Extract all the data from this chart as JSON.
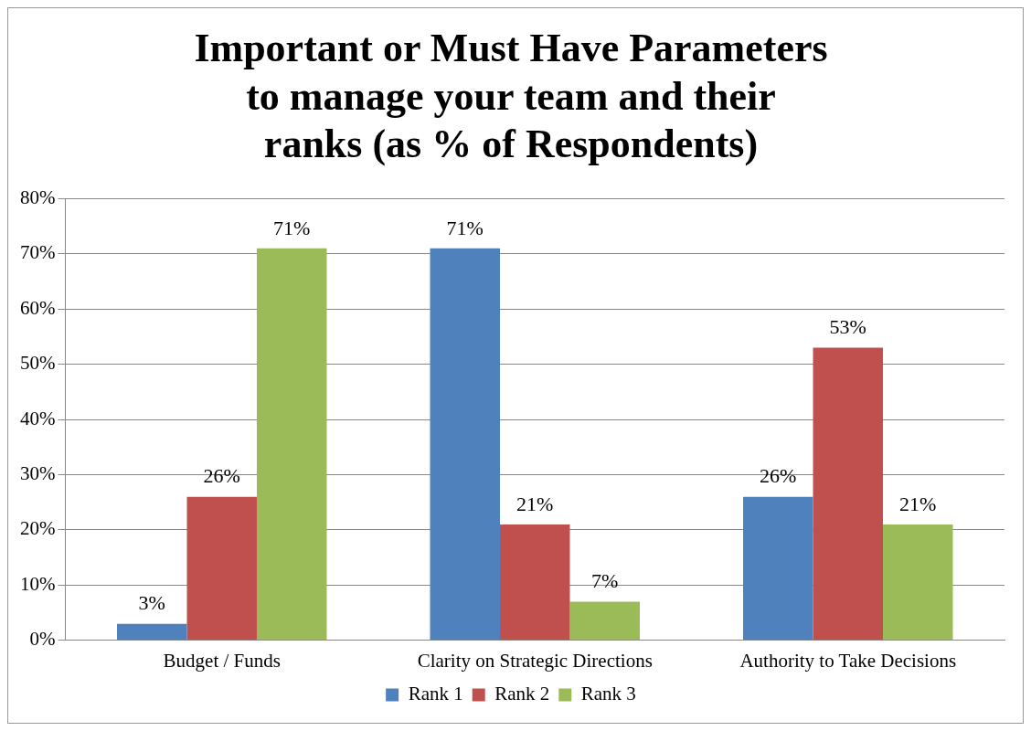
{
  "chart_data": {
    "type": "bar",
    "title": "Important or Must Have Parameters to manage your team and their ranks (as % of Respondents)",
    "categories": [
      "Budget / Funds",
      "Clarity on Strategic Directions",
      "Authority to Take Decisions"
    ],
    "series": [
      {
        "name": "Rank 1",
        "color": "#4f81bd",
        "values": [
          3,
          71,
          26
        ],
        "value_labels": [
          "3%",
          "71%",
          "26%"
        ]
      },
      {
        "name": "Rank 2",
        "color": "#c0504d",
        "values": [
          26,
          21,
          53
        ],
        "value_labels": [
          "26%",
          "21%",
          "53%"
        ]
      },
      {
        "name": "Rank 3",
        "color": "#9bbb59",
        "values": [
          71,
          7,
          21
        ],
        "value_labels": [
          "71%",
          "7%",
          "21%"
        ]
      }
    ],
    "ylim": [
      0,
      80
    ],
    "yticks": [
      {
        "value": 0,
        "label": "0%"
      },
      {
        "value": 10,
        "label": "10%"
      },
      {
        "value": 20,
        "label": "20%"
      },
      {
        "value": 30,
        "label": "30%"
      },
      {
        "value": 40,
        "label": "40%"
      },
      {
        "value": 50,
        "label": "50%"
      },
      {
        "value": 60,
        "label": "60%"
      },
      {
        "value": 70,
        "label": "70%"
      },
      {
        "value": 80,
        "label": "80%"
      }
    ],
    "grid": "y",
    "legend": "bottom"
  }
}
